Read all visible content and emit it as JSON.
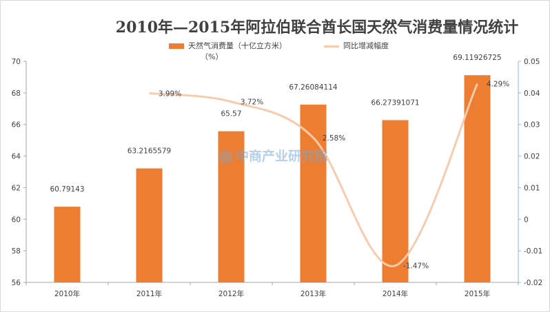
{
  "title": "2010年—2015年阿拉伯联合酋长国天然气消费量情况统计",
  "watermark": "中商产业研究院",
  "colors": {
    "bar": "#ed7d31",
    "line": "#f8cbad",
    "axis": "#a6a6a6",
    "right_axis": "#8eb4e3"
  },
  "chart_data": {
    "type": "bar",
    "categories": [
      "2010年",
      "2011年",
      "2012年",
      "2013年",
      "2014年",
      "2015年"
    ],
    "series": [
      {
        "name": "天然气消费量（十亿立方米）",
        "type": "bar",
        "axis": "left",
        "values": [
          60.79143,
          63.2165579,
          65.57,
          67.26084114,
          66.27391071,
          69.11926725
        ],
        "labels": [
          "60.79143",
          "63.2165579",
          "65.57",
          "67.26084114",
          "66.27391071",
          "69.11926725"
        ]
      },
      {
        "name": "同比增减幅度",
        "name_line2": "（%）",
        "type": "line",
        "axis": "right",
        "values": [
          null,
          0.0399,
          0.0372,
          0.0258,
          -0.0147,
          0.0429
        ],
        "labels": [
          "",
          "3.99%",
          "3.72%",
          "2.58%",
          "-1.47%",
          "4.29%"
        ]
      }
    ],
    "y_left": {
      "lim": [
        56,
        70
      ],
      "ticks": [
        "56",
        "58",
        "60",
        "62",
        "64",
        "66",
        "68",
        "70"
      ]
    },
    "y_right": {
      "lim": [
        -0.02,
        0.05
      ],
      "ticks": [
        "-0.02",
        "-0.01",
        "0",
        "0.01",
        "0.02",
        "0.03",
        "0.04",
        "0.05"
      ]
    },
    "grid": false,
    "legend_position": "top-center"
  }
}
